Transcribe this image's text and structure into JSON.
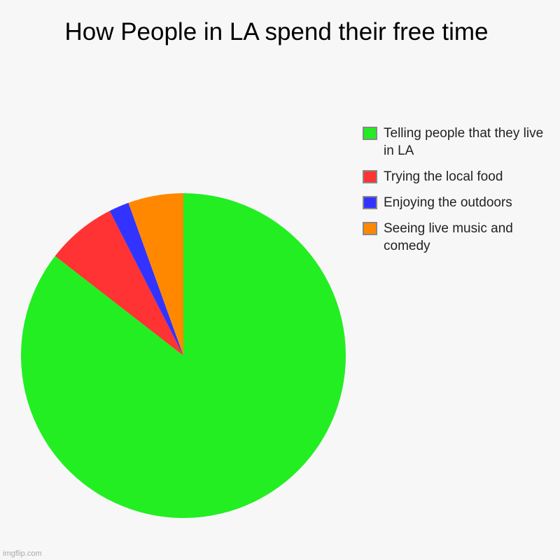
{
  "chart_data": {
    "type": "pie",
    "title": "How People in LA spend their free time",
    "categories": [
      "Telling people that they live in LA",
      "Trying the local food",
      "Enjoying the outdoors",
      "Seeing live music and comedy"
    ],
    "values": [
      85.5,
      7,
      2,
      5.5
    ],
    "colors": [
      "#22ee22",
      "#ff3333",
      "#3333ff",
      "#ff8800"
    ],
    "legend_position": "right",
    "start_angle": "top, clockwise"
  },
  "watermark": "imgflip.com"
}
